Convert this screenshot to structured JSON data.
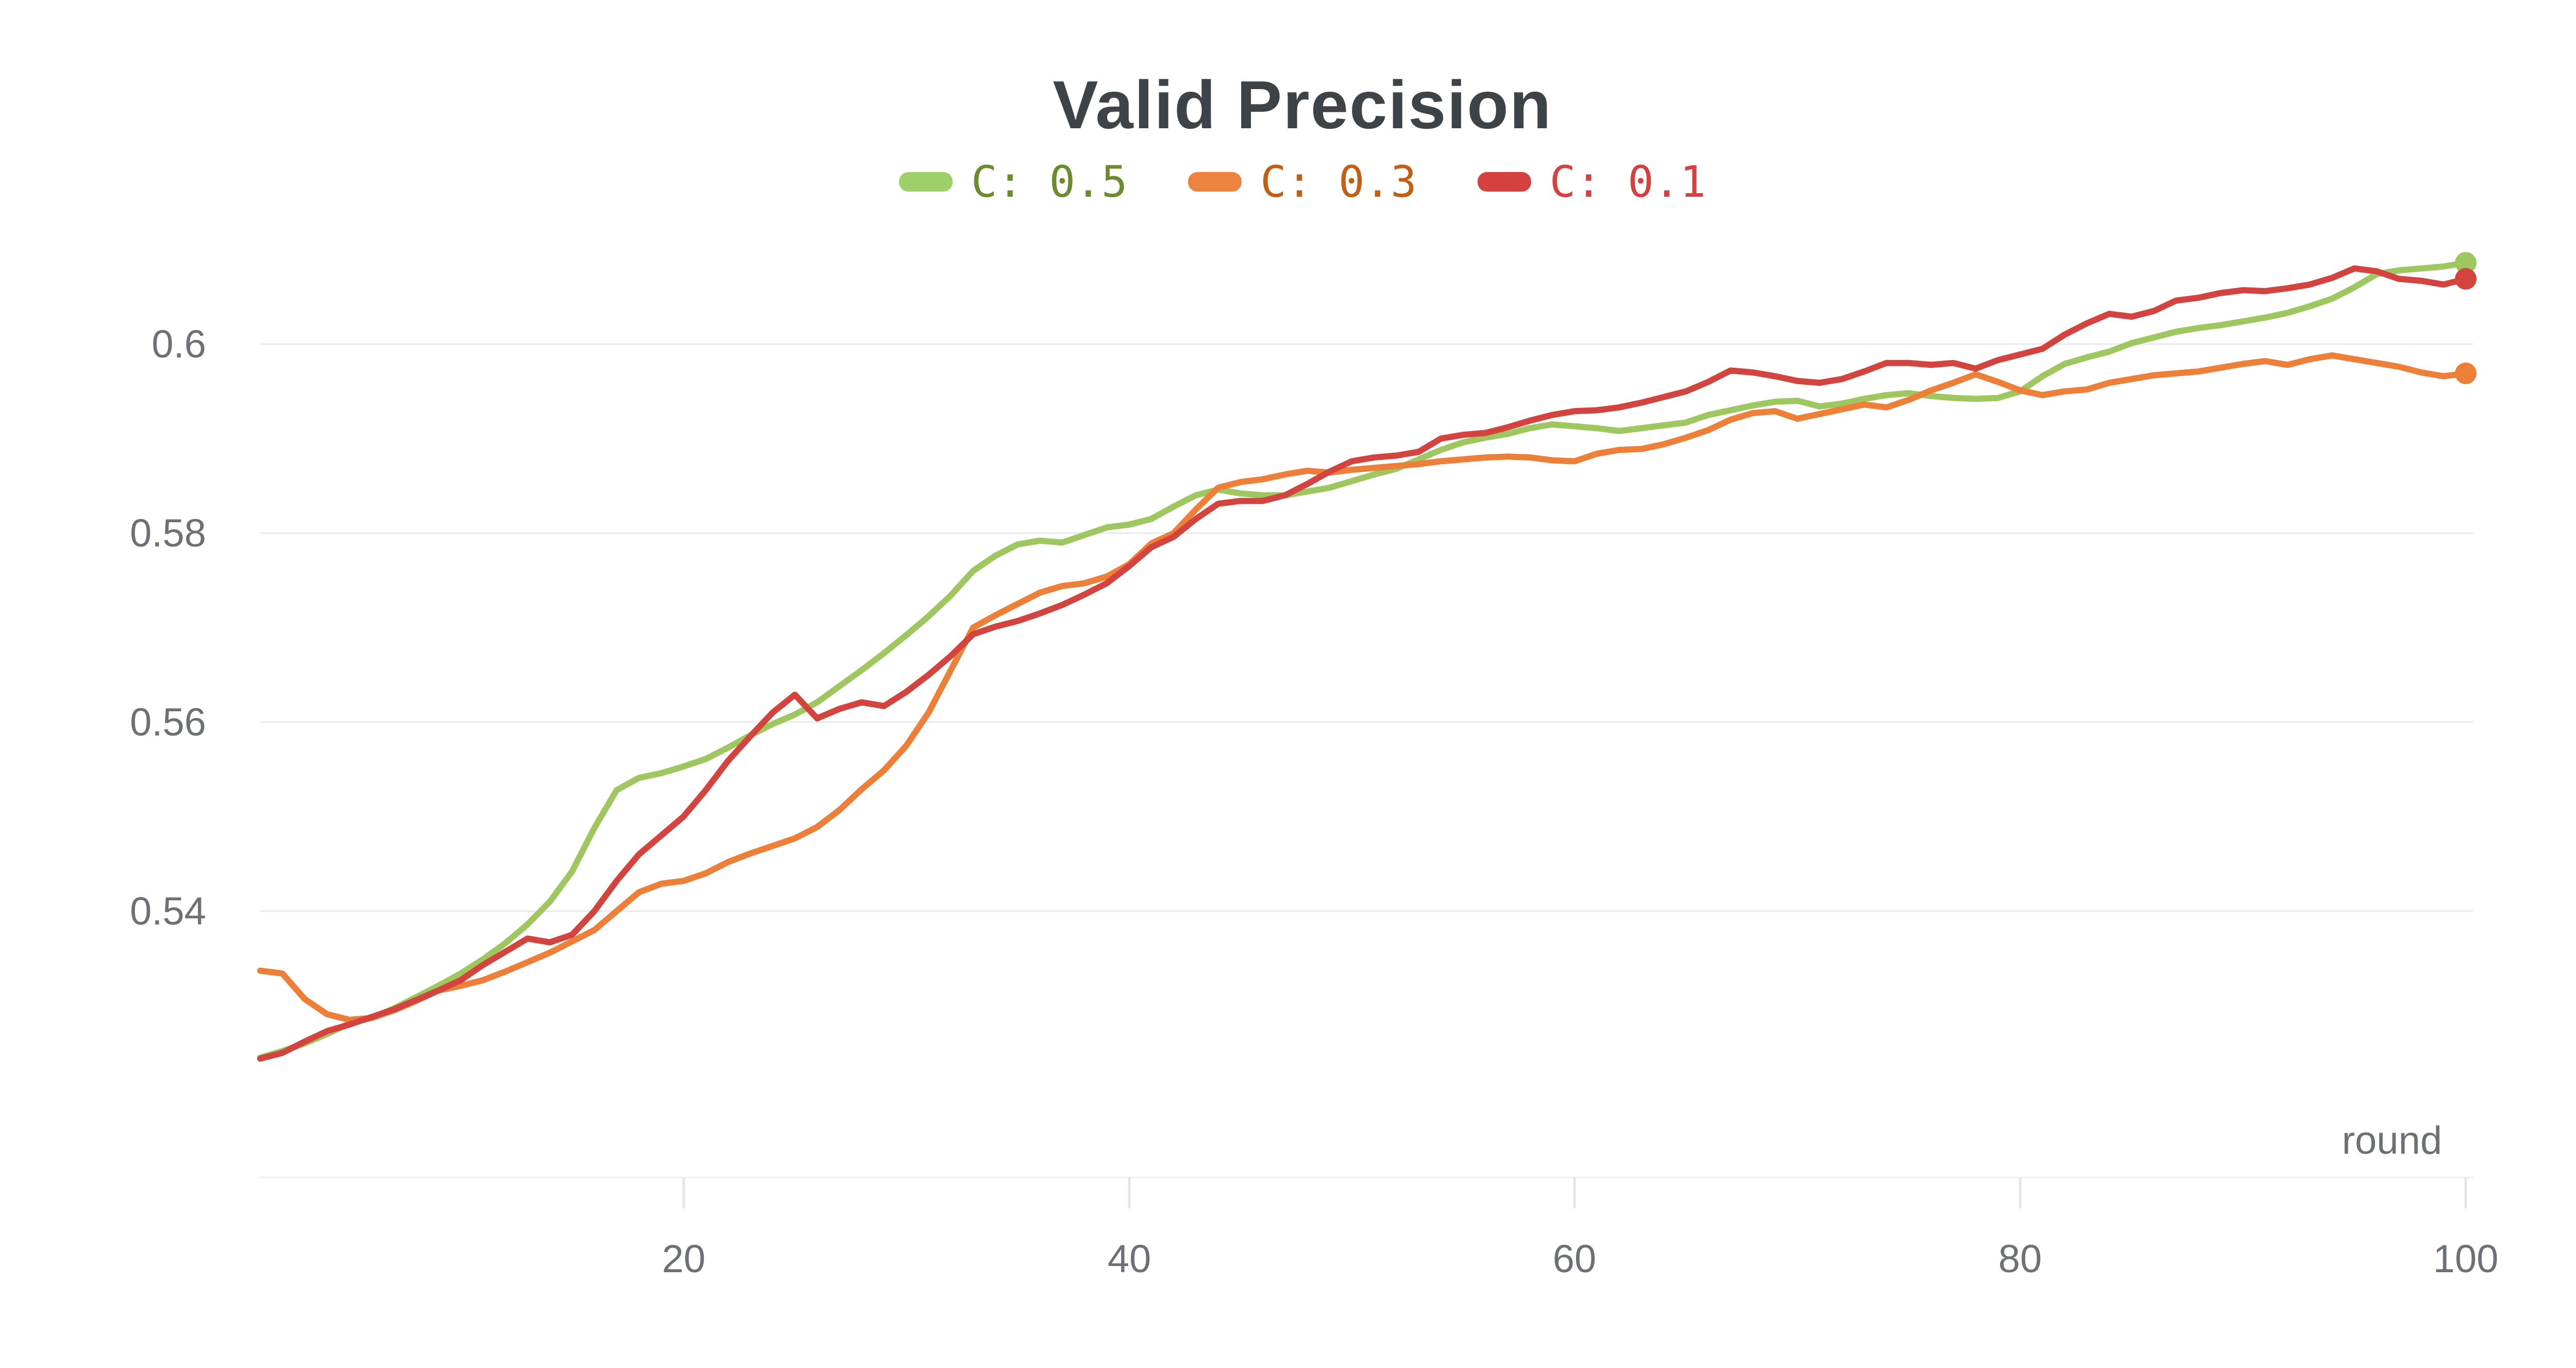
{
  "chart_data": {
    "type": "line",
    "title": "Valid Precision",
    "xlabel": "round",
    "ylabel": "",
    "legend_position": "top",
    "grid": "horizontal",
    "xlim": [
      1,
      100
    ],
    "ylim": [
      0.512,
      0.612
    ],
    "x_ticks": [
      {
        "label": "20",
        "value": 20
      },
      {
        "label": "40",
        "value": 40
      },
      {
        "label": "60",
        "value": 60
      },
      {
        "label": "80",
        "value": 80
      },
      {
        "label": "100",
        "value": 100
      }
    ],
    "y_ticks": [
      {
        "label": "0.54",
        "value": 0.54
      },
      {
        "label": "0.56",
        "value": 0.56
      },
      {
        "label": "0.58",
        "value": 0.58
      },
      {
        "label": "0.6",
        "value": 0.6
      }
    ],
    "rounds": [
      1,
      2,
      3,
      4,
      5,
      6,
      7,
      8,
      9,
      10,
      11,
      12,
      13,
      14,
      15,
      16,
      17,
      18,
      19,
      20,
      21,
      22,
      23,
      24,
      25,
      26,
      27,
      28,
      29,
      30,
      31,
      32,
      33,
      34,
      35,
      36,
      37,
      38,
      39,
      40,
      41,
      42,
      43,
      44,
      45,
      46,
      47,
      48,
      49,
      50,
      51,
      52,
      53,
      54,
      55,
      56,
      57,
      58,
      59,
      60,
      61,
      62,
      63,
      64,
      65,
      66,
      67,
      68,
      69,
      70,
      71,
      72,
      73,
      74,
      75,
      76,
      77,
      78,
      79,
      80,
      81,
      82,
      83,
      84,
      85,
      86,
      87,
      88,
      89,
      90,
      91,
      92,
      93,
      94,
      95,
      96,
      97,
      98,
      99,
      100
    ],
    "series": [
      {
        "name": "C: 0.5",
        "color": "#9ec75f",
        "swatch_color": "#9ecf68",
        "label_color": "#6c8a2e",
        "end_marker": true,
        "values": [
          0.5245,
          0.5252,
          0.526,
          0.527,
          0.5281,
          0.5287,
          0.5297,
          0.5309,
          0.5321,
          0.5334,
          0.5349,
          0.5366,
          0.5386,
          0.541,
          0.5442,
          0.5488,
          0.5528,
          0.5541,
          0.5546,
          0.5553,
          0.5561,
          0.5573,
          0.5586,
          0.5598,
          0.5608,
          0.5621,
          0.5638,
          0.5655,
          0.5673,
          0.5692,
          0.5712,
          0.5734,
          0.576,
          0.5776,
          0.5788,
          0.5792,
          0.579,
          0.5798,
          0.5806,
          0.5809,
          0.5815,
          0.5828,
          0.584,
          0.5846,
          0.5842,
          0.584,
          0.584,
          0.5844,
          0.5848,
          0.5855,
          0.5862,
          0.5868,
          0.5878,
          0.5888,
          0.5896,
          0.5901,
          0.5905,
          0.5911,
          0.5915,
          0.5913,
          0.5911,
          0.5908,
          0.5911,
          0.5914,
          0.5917,
          0.5925,
          0.593,
          0.5935,
          0.5939,
          0.594,
          0.5934,
          0.5937,
          0.5942,
          0.5946,
          0.5948,
          0.5945,
          0.5943,
          0.5942,
          0.5943,
          0.595,
          0.5966,
          0.5979,
          0.5986,
          0.5992,
          0.6001,
          0.6007,
          0.6013,
          0.6017,
          0.602,
          0.6024,
          0.6028,
          0.6033,
          0.604,
          0.6048,
          0.606,
          0.6074,
          0.6078,
          0.608,
          0.6082,
          0.6086
        ]
      },
      {
        "name": "C: 0.3",
        "color": "#ed7f38",
        "swatch_color": "#ee833f",
        "label_color": "#c05f15",
        "end_marker": true,
        "values": [
          0.5337,
          0.5334,
          0.5307,
          0.5291,
          0.5285,
          0.5287,
          0.5295,
          0.5305,
          0.5316,
          0.5321,
          0.5327,
          0.5336,
          0.5346,
          0.5356,
          0.5368,
          0.538,
          0.54,
          0.542,
          0.5429,
          0.5432,
          0.544,
          0.5452,
          0.5461,
          0.5469,
          0.5477,
          0.5489,
          0.5507,
          0.5529,
          0.5549,
          0.5575,
          0.561,
          0.5655,
          0.57,
          0.5713,
          0.5725,
          0.5737,
          0.5744,
          0.5747,
          0.5754,
          0.5767,
          0.5789,
          0.58,
          0.5825,
          0.5848,
          0.5854,
          0.5857,
          0.5862,
          0.5866,
          0.5864,
          0.5867,
          0.5869,
          0.5871,
          0.5873,
          0.5876,
          0.5878,
          0.588,
          0.5881,
          0.588,
          0.5877,
          0.5876,
          0.5884,
          0.5888,
          0.5889,
          0.5894,
          0.5901,
          0.5909,
          0.592,
          0.5927,
          0.5929,
          0.5921,
          0.5926,
          0.5931,
          0.5936,
          0.5933,
          0.5941,
          0.5951,
          0.5959,
          0.5968,
          0.596,
          0.5951,
          0.5946,
          0.595,
          0.5952,
          0.5959,
          0.5963,
          0.5967,
          0.5969,
          0.5971,
          0.5975,
          0.5979,
          0.5982,
          0.5978,
          0.5984,
          0.5988,
          0.5984,
          0.598,
          0.5976,
          0.597,
          0.5966,
          0.5969
        ]
      },
      {
        "name": "C: 0.1",
        "color": "#d4443f",
        "swatch_color": "#d4413e",
        "label_color": "#d4413e",
        "end_marker": true,
        "values": [
          0.5244,
          0.525,
          0.5262,
          0.5273,
          0.528,
          0.5288,
          0.5296,
          0.5306,
          0.5316,
          0.5327,
          0.5343,
          0.5357,
          0.5371,
          0.5367,
          0.5375,
          0.54,
          0.5432,
          0.546,
          0.548,
          0.55,
          0.5528,
          0.5559,
          0.5585,
          0.561,
          0.5629,
          0.5604,
          0.5614,
          0.5621,
          0.5617,
          0.5632,
          0.565,
          0.567,
          0.5693,
          0.5701,
          0.5707,
          0.5715,
          0.5724,
          0.5735,
          0.5747,
          0.5765,
          0.5785,
          0.5796,
          0.5815,
          0.5831,
          0.5834,
          0.5834,
          0.584,
          0.5852,
          0.5865,
          0.5876,
          0.588,
          0.5882,
          0.5886,
          0.59,
          0.5904,
          0.5906,
          0.5912,
          0.5919,
          0.5925,
          0.5929,
          0.593,
          0.5933,
          0.5938,
          0.5944,
          0.595,
          0.596,
          0.5972,
          0.597,
          0.5966,
          0.5961,
          0.5959,
          0.5963,
          0.5971,
          0.598,
          0.598,
          0.5978,
          0.598,
          0.5974,
          0.5983,
          0.5989,
          0.5995,
          0.601,
          0.6022,
          0.6032,
          0.6029,
          0.6035,
          0.6046,
          0.6049,
          0.6054,
          0.6057,
          0.6056,
          0.6059,
          0.6063,
          0.607,
          0.608,
          0.6077,
          0.6069,
          0.6067,
          0.6063,
          0.6069
        ]
      }
    ]
  }
}
